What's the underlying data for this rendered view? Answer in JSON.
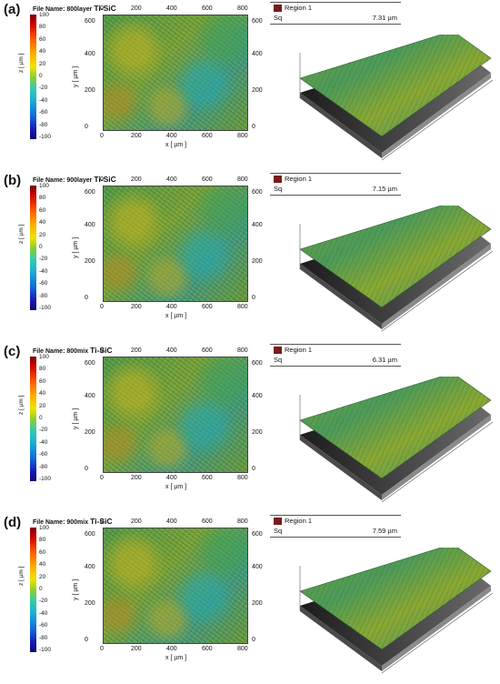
{
  "colorbar": {
    "label": "z [ µm ]",
    "ticks": [
      "100",
      "80",
      "60",
      "40",
      "20",
      "0",
      "-20",
      "-40",
      "-60",
      "-80",
      "-100"
    ]
  },
  "map_axes": {
    "x_ticks": [
      "0",
      "200",
      "400",
      "600",
      "800"
    ],
    "y_ticks": [
      "600",
      "400",
      "200",
      "0"
    ],
    "xlabel": "x [ µm ]",
    "ylabel": "y [ µm ]"
  },
  "region_label": "Region 1",
  "sq_label": "Sq",
  "panels": [
    {
      "label": "(a)",
      "file_prefix": "File Name: 800layer",
      "material": "Ti-SiC",
      "sq_value": "7.31 µm"
    },
    {
      "label": "(b)",
      "file_prefix": "File Name: 900layer",
      "material": "Ti-SiC",
      "sq_value": "7.15 µm"
    },
    {
      "label": "(c)",
      "file_prefix": "File Name: 800mix",
      "material": "Ti-SiC",
      "sq_value": "6.31 µm"
    },
    {
      "label": "(d)",
      "file_prefix": "File Name: 900mix",
      "material": "Ti-SiC",
      "sq_value": "7.59 µm"
    }
  ],
  "colors": {
    "region_swatch": "#7a1b1b",
    "surface_green": "#5e9a3e",
    "surface_base": "#3a3a3a"
  }
}
